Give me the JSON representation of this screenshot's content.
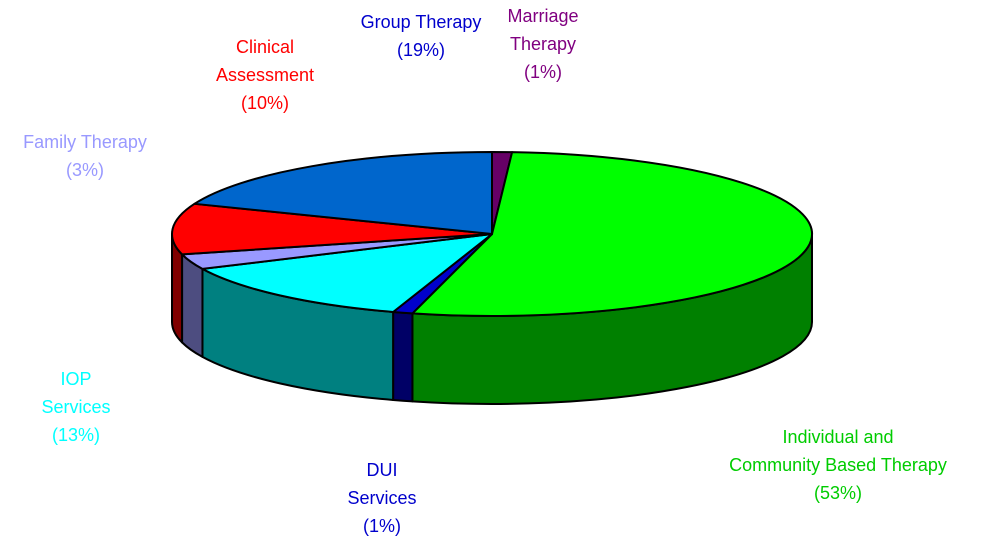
{
  "chart_data": {
    "type": "pie3d",
    "categories": [
      "Marriage\nTherapy",
      "Individual and\nCommunity Based Therapy",
      "DUI\nServices",
      "IOP\nServices",
      "Family Therapy",
      "Clinical\nAssessment",
      "Group Therapy"
    ],
    "values": [
      1,
      53,
      1,
      13,
      3,
      10,
      19
    ],
    "value_labels": [
      "(1%)",
      "(53%)",
      "(1%)",
      "(13%)",
      "(3%)",
      "(10%)",
      "(19%)"
    ],
    "colors": [
      "#660066",
      "#00ff00",
      "#0000cc",
      "#00ffff",
      "#9999ff",
      "#ff0000",
      "#0066cc"
    ],
    "label_colors": [
      "#800080",
      "#00cc00",
      "#0000cc",
      "#00ffff",
      "#9999ff",
      "#ff0000",
      "#0000cc"
    ]
  }
}
